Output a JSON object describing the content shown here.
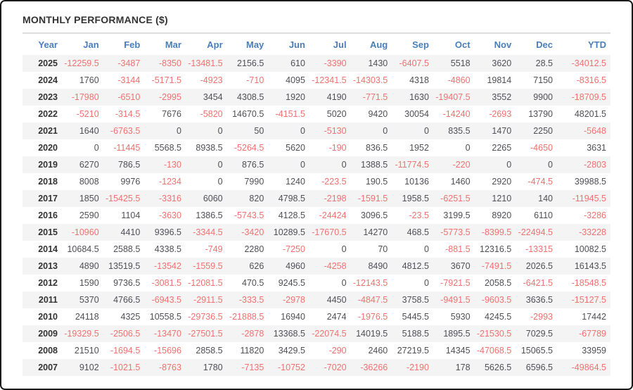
{
  "title": "MONTHLY PERFORMANCE ($)",
  "colors": {
    "frame_border": "#1a1a1a",
    "title_text": "#333333",
    "header_text": "#4a7ebb",
    "value_text": "#4f4f57",
    "year_text": "#333333",
    "negative_text": "#f2716e",
    "row_stripe": "#f4f4f5",
    "divider": "#dcdcdc"
  },
  "table": {
    "columns": [
      "Year",
      "Jan",
      "Feb",
      "Mar",
      "Apr",
      "May",
      "Jun",
      "Jul",
      "Aug",
      "Sep",
      "Oct",
      "Nov",
      "Dec",
      "YTD"
    ],
    "rows": [
      {
        "year": "2025",
        "values": [
          "-12259.5",
          "-3487",
          "-8350",
          "-13481.5",
          "2156.5",
          "610",
          "-3390",
          "1430",
          "-6407.5",
          "5518",
          "3620",
          "28.5",
          "-34012.5"
        ]
      },
      {
        "year": "2024",
        "values": [
          "1760",
          "-3144",
          "-5171.5",
          "-4923",
          "-710",
          "4095",
          "-12341.5",
          "-14303.5",
          "4318",
          "-4860",
          "19814",
          "7150",
          "-8316.5"
        ]
      },
      {
        "year": "2023",
        "values": [
          "-17980",
          "-6510",
          "-2995",
          "3454",
          "4308.5",
          "1920",
          "4190",
          "-771.5",
          "1630",
          "-19407.5",
          "3552",
          "9900",
          "-18709.5"
        ]
      },
      {
        "year": "2022",
        "values": [
          "-5210",
          "-314.5",
          "7676",
          "-5820",
          "14670.5",
          "-4151.5",
          "5020",
          "9420",
          "30054",
          "-14240",
          "-2693",
          "13790",
          "48201.5"
        ]
      },
      {
        "year": "2021",
        "values": [
          "1640",
          "-6763.5",
          "0",
          "0",
          "50",
          "0",
          "-5130",
          "0",
          "0",
          "835.5",
          "1470",
          "2250",
          "-5648"
        ]
      },
      {
        "year": "2020",
        "values": [
          "0",
          "-11445",
          "5568.5",
          "8938.5",
          "-5264.5",
          "5620",
          "-190",
          "836.5",
          "1952",
          "0",
          "2265",
          "-4650",
          "3631"
        ]
      },
      {
        "year": "2019",
        "values": [
          "6270",
          "786.5",
          "-130",
          "0",
          "876.5",
          "0",
          "0",
          "1388.5",
          "-11774.5",
          "-220",
          "0",
          "0",
          "-2803"
        ]
      },
      {
        "year": "2018",
        "values": [
          "8008",
          "9976",
          "-1234",
          "0",
          "7990",
          "1240",
          "-223.5",
          "190.5",
          "10136",
          "1460",
          "2920",
          "-474.5",
          "39988.5"
        ]
      },
      {
        "year": "2017",
        "values": [
          "1850",
          "-15425.5",
          "-3316",
          "6060",
          "820",
          "4798.5",
          "-2198",
          "-1591.5",
          "1958.5",
          "-6251.5",
          "1210",
          "140",
          "-11945.5"
        ]
      },
      {
        "year": "2016",
        "values": [
          "2590",
          "1104",
          "-3630",
          "1386.5",
          "-5743.5",
          "4128.5",
          "-24424",
          "3096.5",
          "-23.5",
          "3199.5",
          "8920",
          "6110",
          "-3286"
        ]
      },
      {
        "year": "2015",
        "values": [
          "-10960",
          "4410",
          "9396.5",
          "-3344.5",
          "-3420",
          "10289.5",
          "-17670.5",
          "14270",
          "468.5",
          "-5773.5",
          "-8399.5",
          "-22494.5",
          "-33228"
        ]
      },
      {
        "year": "2014",
        "values": [
          "10684.5",
          "2588.5",
          "4338.5",
          "-749",
          "2280",
          "-7250",
          "0",
          "70",
          "0",
          "-881.5",
          "12316.5",
          "-13315",
          "10082.5"
        ]
      },
      {
        "year": "2013",
        "values": [
          "4890",
          "13519.5",
          "-13542",
          "-1559.5",
          "626",
          "4960",
          "-4258",
          "8490",
          "4812.5",
          "3670",
          "-7491.5",
          "2026.5",
          "16143.5"
        ]
      },
      {
        "year": "2012",
        "values": [
          "1590",
          "9736.5",
          "-3081.5",
          "-12081.5",
          "470.5",
          "9245.5",
          "0",
          "-12143.5",
          "0",
          "-7921.5",
          "2058.5",
          "-6421.5",
          "-18548.5"
        ]
      },
      {
        "year": "2011",
        "values": [
          "5370",
          "4766.5",
          "-6943.5",
          "-2911.5",
          "-333.5",
          "-2978",
          "4450",
          "-4847.5",
          "3758.5",
          "-9491.5",
          "-9603.5",
          "3636.5",
          "-15127.5"
        ]
      },
      {
        "year": "2010",
        "values": [
          "24118",
          "4325",
          "10558.5",
          "-29736.5",
          "-21888.5",
          "16940",
          "2474",
          "-1976.5",
          "5445.5",
          "5930",
          "4245.5",
          "-2993",
          "17442"
        ]
      },
      {
        "year": "2009",
        "values": [
          "-19329.5",
          "-2506.5",
          "-13470",
          "-27501.5",
          "-2878",
          "13368.5",
          "-22074.5",
          "14019.5",
          "5188.5",
          "1895.5",
          "-21530.5",
          "7029.5",
          "-67789"
        ]
      },
      {
        "year": "2008",
        "values": [
          "21510",
          "-1694.5",
          "-15696",
          "2858.5",
          "11820",
          "3429.5",
          "-290",
          "2460",
          "27219.5",
          "14345",
          "-47068.5",
          "15065.5",
          "33959"
        ]
      },
      {
        "year": "2007",
        "values": [
          "9102",
          "-1021.5",
          "-8763",
          "1780",
          "-7135",
          "-10752",
          "-7020",
          "-36266",
          "-2190",
          "178",
          "5626.5",
          "6596.5",
          "-49864.5"
        ]
      }
    ]
  }
}
